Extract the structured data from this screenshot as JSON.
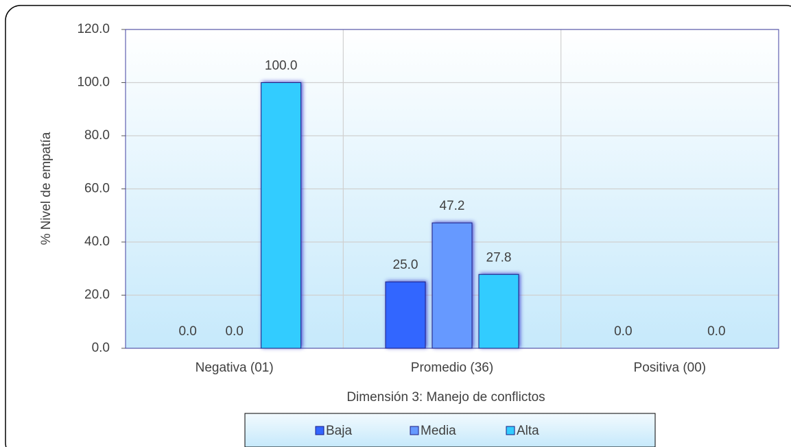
{
  "chart_data": {
    "type": "bar",
    "categories": [
      "Negativa (01)",
      "Promedio (36)",
      "Positiva (00)"
    ],
    "series": [
      {
        "name": "Baja",
        "color": "#3366ff",
        "values": [
          0,
          25,
          0
        ],
        "value_labels": [
          "0.0",
          "25.0",
          "0.0"
        ]
      },
      {
        "name": "Media",
        "color": "#6699ff",
        "values": [
          0,
          47.2,
          null
        ],
        "value_labels": [
          "0.0",
          "47.2",
          null
        ]
      },
      {
        "name": "Alta",
        "color": "#33ccff",
        "values": [
          100,
          27.8,
          0
        ],
        "value_labels": [
          "100.0",
          "27.8",
          "0.0"
        ]
      }
    ],
    "y_label": "% Nivel de empatía",
    "x_label": "Dimensión 3: Manejo de conflictos",
    "ylim": [
      0,
      120
    ],
    "yticks": [
      {
        "value": 0,
        "label": "0.0"
      },
      {
        "value": 20,
        "label": "20.0"
      },
      {
        "value": 40,
        "label": "40.0"
      },
      {
        "value": 60,
        "label": "60.0"
      },
      {
        "value": 80,
        "label": "80.0"
      },
      {
        "value": 100,
        "label": "100.0"
      },
      {
        "value": 120,
        "label": "120.0"
      }
    ],
    "grid": true,
    "legend": "bottom"
  }
}
